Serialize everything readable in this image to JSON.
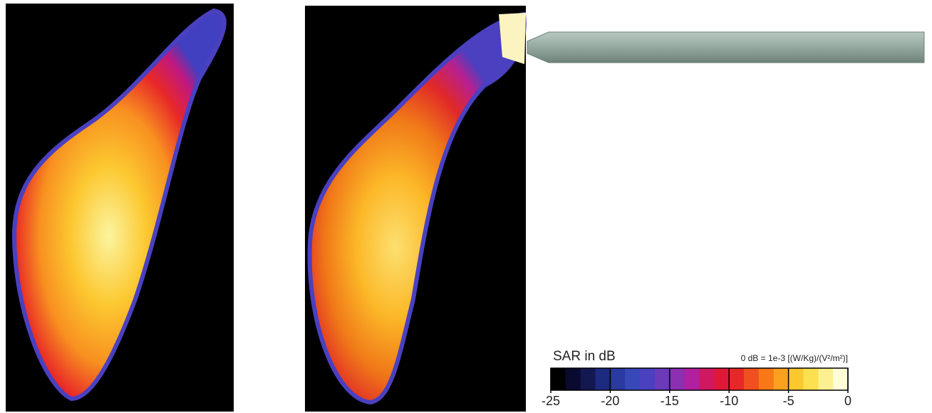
{
  "colorbar": {
    "title": "SAR in dB",
    "reference": "0 dB = 1e-3 [(W/Kg)/(V²/m²)]",
    "lim": [
      -25,
      0
    ],
    "ticks": [
      -25,
      -20,
      -15,
      -10,
      -5,
      0
    ],
    "colors": [
      "#000000",
      "#0a0a30",
      "#141850",
      "#1c2a80",
      "#2a3aa0",
      "#3848b8",
      "#4a40c0",
      "#6a3ab8",
      "#8a30b0",
      "#b020a0",
      "#d01860",
      "#e01838",
      "#e82828",
      "#f05020",
      "#f87818",
      "#fca020",
      "#fcc830",
      "#fce050",
      "#fcf090",
      "#fffcd8"
    ]
  }
}
